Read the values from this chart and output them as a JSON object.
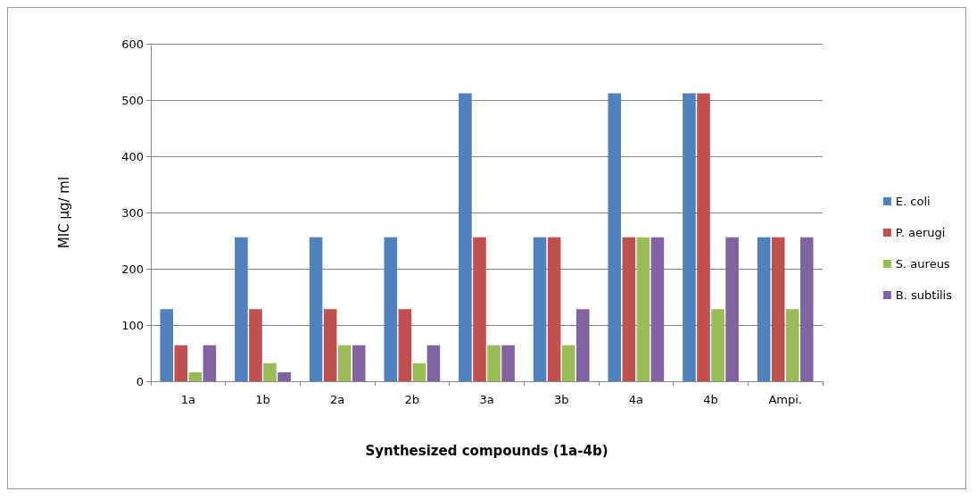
{
  "chart_data": {
    "type": "bar",
    "xlabel": "Synthesized compounds (1a-4b)",
    "ylabel": "MIC μg/ ml",
    "categories": [
      "1a",
      "1b",
      "2a",
      "2b",
      "3a",
      "3b",
      "4a",
      "4b",
      "Ampi."
    ],
    "series": [
      {
        "name": "E. coli",
        "color": "#4f81bd",
        "values": [
          128,
          256,
          256,
          256,
          512,
          256,
          512,
          512,
          256
        ]
      },
      {
        "name": "P. aerugi",
        "color": "#c0504d",
        "values": [
          64,
          128,
          128,
          128,
          256,
          256,
          256,
          512,
          256
        ]
      },
      {
        "name": "S. aureus",
        "color": "#9bbb59",
        "values": [
          16,
          32,
          64,
          32,
          64,
          64,
          256,
          128,
          128
        ]
      },
      {
        "name": "B. subtilis",
        "color": "#8064a2",
        "values": [
          64,
          16,
          64,
          64,
          64,
          128,
          256,
          256,
          256
        ]
      }
    ],
    "ylim": [
      0,
      600
    ],
    "yticks": [
      0,
      100,
      200,
      300,
      400,
      500,
      600
    ],
    "grid": "y",
    "legend": "right"
  }
}
